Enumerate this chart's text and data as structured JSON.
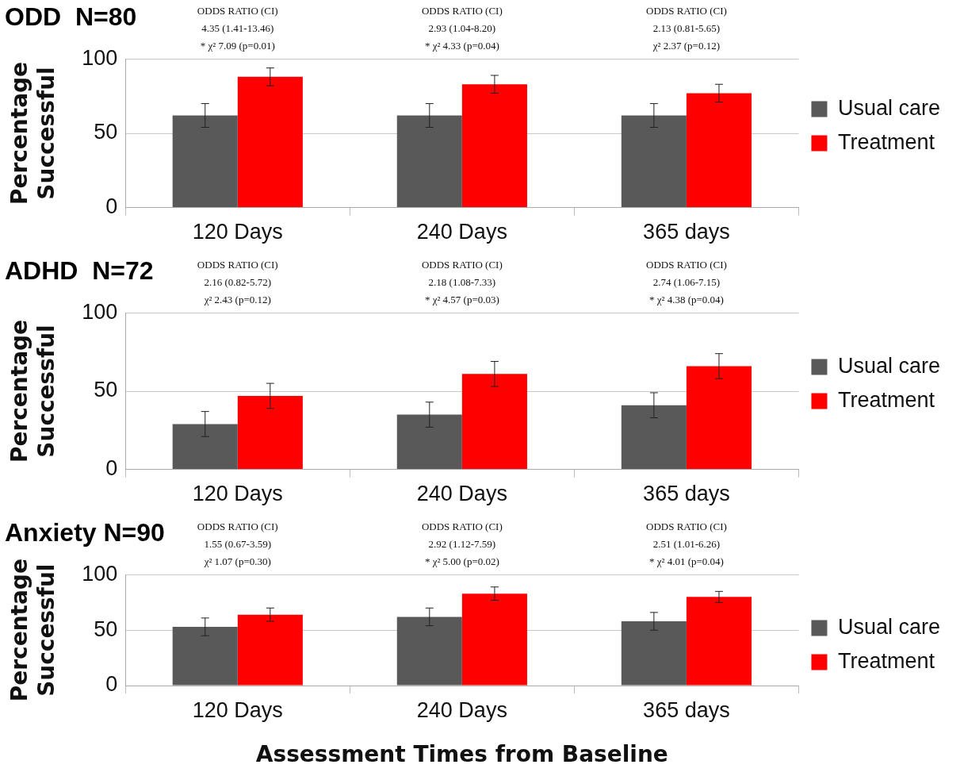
{
  "chart_data": [
    {
      "type": "bar",
      "title": "ODD  N=80",
      "ylabel": "Percentage Successful",
      "categories": [
        "120 Days",
        "240 Days",
        "365 days"
      ],
      "series": [
        {
          "name": "Usual care",
          "color": "#595959",
          "values": [
            62,
            62,
            62
          ],
          "errors": [
            8,
            8,
            8
          ]
        },
        {
          "name": "Treatment",
          "color": "#ff0000",
          "values": [
            88,
            83,
            77
          ],
          "errors": [
            6,
            6,
            6
          ]
        }
      ],
      "ylim": [
        0,
        100
      ],
      "yticks": [
        0,
        50,
        100
      ],
      "grid": "y",
      "legend": "right",
      "annotations": [
        "ODDS RATIO (CI)\n4.35 (1.41-13.46)\n* χ² 7.09 (p=0.01)",
        "ODDS RATIO (CI)\n2.93 (1.04-8.20)\n* χ² 4.33 (p=0.04)",
        "ODDS RATIO (CI)\n2.13 (0.81-5.65)\nχ² 2.37 (p=0.12)"
      ]
    },
    {
      "type": "bar",
      "title": "ADHD  N=72",
      "ylabel": "Percentage Successful",
      "categories": [
        "120 Days",
        "240 Days",
        "365 days"
      ],
      "series": [
        {
          "name": "Usual care",
          "color": "#595959",
          "values": [
            29,
            35,
            41
          ],
          "errors": [
            8,
            8,
            8
          ]
        },
        {
          "name": "Treatment",
          "color": "#ff0000",
          "values": [
            47,
            61,
            66
          ],
          "errors": [
            8,
            8,
            8
          ]
        }
      ],
      "ylim": [
        0,
        100
      ],
      "yticks": [
        0,
        50,
        100
      ],
      "grid": "y",
      "legend": "right",
      "annotations": [
        "ODDS RATIO (CI)\n2.16 (0.82-5.72)\nχ² 2.43 (p=0.12)",
        "ODDS RATIO (CI)\n2.18 (1.08-7.33)\n* χ² 4.57 (p=0.03)",
        "ODDS RATIO (CI)\n2.74 (1.06-7.15)\n* χ² 4.38 (p=0.04)"
      ]
    },
    {
      "type": "bar",
      "title": "Anxiety N=90",
      "ylabel": "Percentage Successful",
      "xlabel": "Assessment Times from Baseline",
      "categories": [
        "120 Days",
        "240 Days",
        "365 days"
      ],
      "series": [
        {
          "name": "Usual care",
          "color": "#595959",
          "values": [
            53,
            62,
            58
          ],
          "errors": [
            8,
            8,
            8
          ]
        },
        {
          "name": "Treatment",
          "color": "#ff0000",
          "values": [
            64,
            83,
            80
          ],
          "errors": [
            6,
            6,
            5
          ]
        }
      ],
      "ylim": [
        0,
        100
      ],
      "yticks": [
        0,
        50,
        100
      ],
      "grid": "y",
      "legend": "right",
      "annotations": [
        "ODDS RATIO (CI)\n1.55 (0.67-3.59)\nχ² 1.07 (p=0.30)",
        "ODDS RATIO (CI)\n2.92 (1.12-7.59)\n* χ² 5.00 (p=0.02)",
        "ODDS RATIO (CI)\n2.51 (1.01-6.26)\n* χ² 4.01 (p=0.04)"
      ]
    }
  ]
}
